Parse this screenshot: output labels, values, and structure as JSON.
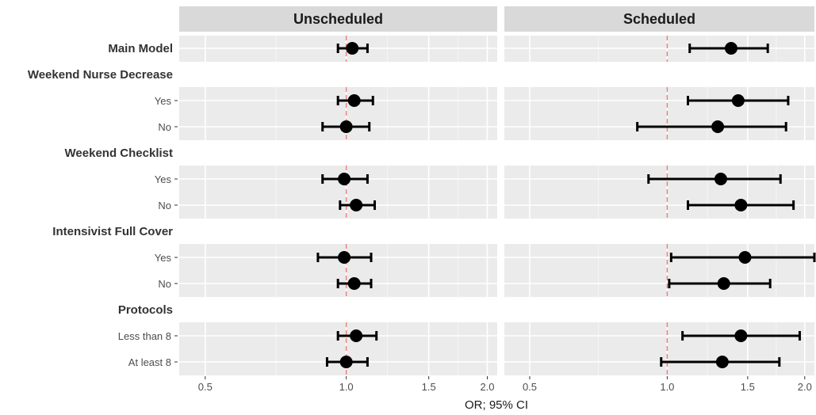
{
  "chart_data": {
    "type": "forest",
    "xlabel": "OR; 95% CI",
    "x_scale": "log",
    "xlim": [
      0.44,
      2.1
    ],
    "x_ticks": [
      0.5,
      1.0,
      1.5,
      2.0
    ],
    "x_tick_labels": [
      "0.5",
      "1.0",
      "1.5",
      "2.0"
    ],
    "reference_line": 1.0,
    "reference_color": "#f08080",
    "panel_background": "#ebebeb",
    "strip_background": "#d9d9d9",
    "facets": [
      "Unscheduled",
      "Scheduled"
    ],
    "groups": [
      {
        "label": "Main Model",
        "rows": [
          {
            "label": "",
            "estimates": [
              {
                "or": 1.03,
                "lower": 0.96,
                "upper": 1.11
              },
              {
                "or": 1.38,
                "lower": 1.12,
                "upper": 1.66
              }
            ]
          }
        ]
      },
      {
        "label": "Weekend Nurse Decrease",
        "rows": [
          {
            "label": "Yes",
            "estimates": [
              {
                "or": 1.04,
                "lower": 0.96,
                "upper": 1.14
              },
              {
                "or": 1.43,
                "lower": 1.11,
                "upper": 1.84
              }
            ]
          },
          {
            "label": "No",
            "estimates": [
              {
                "or": 1.0,
                "lower": 0.89,
                "upper": 1.12
              },
              {
                "or": 1.29,
                "lower": 0.86,
                "upper": 1.82
              }
            ]
          }
        ]
      },
      {
        "label": "Weekend Checklist",
        "rows": [
          {
            "label": "Yes",
            "estimates": [
              {
                "or": 0.99,
                "lower": 0.89,
                "upper": 1.11
              },
              {
                "or": 1.31,
                "lower": 0.91,
                "upper": 1.77
              }
            ]
          },
          {
            "label": "No",
            "estimates": [
              {
                "or": 1.05,
                "lower": 0.97,
                "upper": 1.15
              },
              {
                "or": 1.45,
                "lower": 1.11,
                "upper": 1.89
              }
            ]
          }
        ]
      },
      {
        "label": "Intensivist Full Cover",
        "rows": [
          {
            "label": "Yes",
            "estimates": [
              {
                "or": 0.99,
                "lower": 0.87,
                "upper": 1.13
              },
              {
                "or": 1.48,
                "lower": 1.02,
                "upper": 2.1
              }
            ]
          },
          {
            "label": "No",
            "estimates": [
              {
                "or": 1.04,
                "lower": 0.96,
                "upper": 1.13
              },
              {
                "or": 1.33,
                "lower": 1.01,
                "upper": 1.68
              }
            ]
          }
        ]
      },
      {
        "label": "Protocols",
        "rows": [
          {
            "label": "Less than 8",
            "estimates": [
              {
                "or": 1.05,
                "lower": 0.96,
                "upper": 1.16
              },
              {
                "or": 1.45,
                "lower": 1.08,
                "upper": 1.95
              }
            ]
          },
          {
            "label": "At least 8",
            "estimates": [
              {
                "or": 1.0,
                "lower": 0.91,
                "upper": 1.11
              },
              {
                "or": 1.32,
                "lower": 0.97,
                "upper": 1.76
              }
            ]
          }
        ]
      }
    ]
  }
}
